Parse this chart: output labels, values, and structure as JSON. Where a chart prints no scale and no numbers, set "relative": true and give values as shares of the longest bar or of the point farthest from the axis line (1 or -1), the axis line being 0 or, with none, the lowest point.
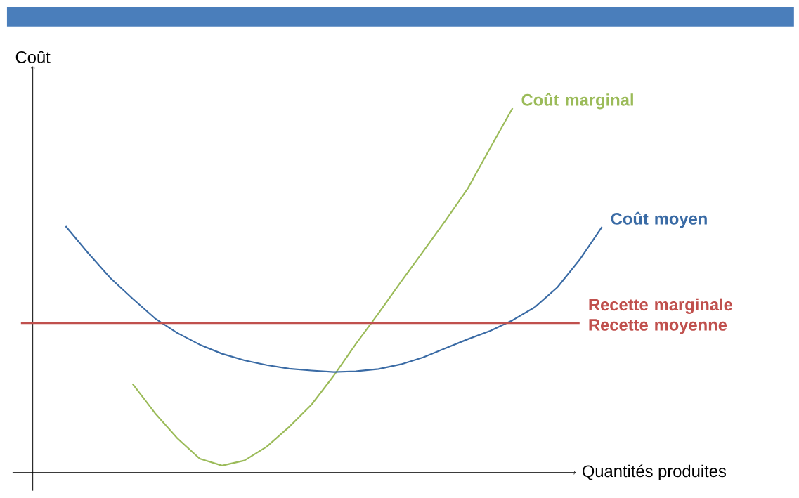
{
  "chart_data": {
    "type": "line",
    "relative": true,
    "xlabel": "Quantités produites",
    "ylabel": "Coût",
    "marker": "none",
    "line_style": "solid",
    "categories": [
      null,
      null,
      null,
      null,
      null,
      null,
      null,
      null,
      null,
      null,
      null,
      null,
      null,
      null,
      null,
      null,
      null,
      null,
      null,
      null,
      null,
      null,
      null,
      null,
      null,
      null,
      null
    ],
    "series": [
      {
        "name": "Coût marginal",
        "color": "#9bbb59",
        "values": [
          null,
          null,
          null,
          null,
          null,
          0.243,
          0.163,
          0.094,
          0.038,
          0.019,
          0.033,
          0.071,
          0.125,
          0.186,
          0.266,
          0.354,
          0.437,
          0.523,
          0.607,
          0.692,
          0.78,
          0.891,
          1.0,
          null,
          null,
          null,
          null
        ]
      },
      {
        "name": "Coût moyen",
        "color": "#3a6ba5",
        "values": [
          null,
          null,
          0.676,
          0.603,
          0.534,
          0.477,
          0.423,
          0.383,
          0.351,
          0.326,
          0.308,
          0.295,
          0.285,
          0.28,
          0.276,
          0.278,
          0.284,
          0.297,
          0.316,
          0.341,
          0.366,
          0.389,
          0.418,
          0.454,
          0.508,
          0.584,
          0.674
        ]
      },
      {
        "name": "Recette marginale Recette moyenne",
        "color": "#c0504d",
        "values": [
          0.41,
          0.41,
          0.41,
          0.41,
          0.41,
          0.41,
          0.41,
          0.41,
          0.41,
          0.41,
          0.41,
          0.41,
          0.41,
          0.41,
          0.41,
          0.41,
          0.41,
          0.41,
          0.41,
          0.41,
          0.41,
          0.41,
          0.41,
          0.41,
          0.41,
          0.41,
          null
        ]
      }
    ]
  }
}
